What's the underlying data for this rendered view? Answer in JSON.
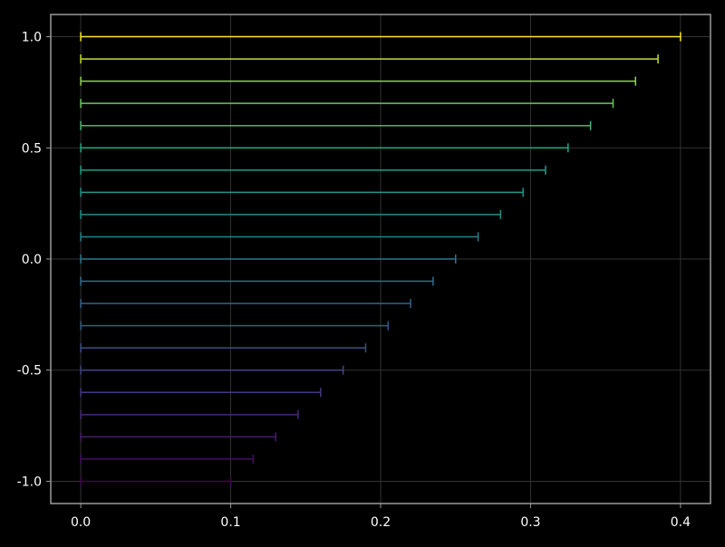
{
  "chart_data": {
    "type": "errorbar",
    "orientation": "horizontal",
    "title": "",
    "xlabel": "",
    "ylabel": "",
    "xlim": [
      -0.02,
      0.42
    ],
    "ylim": [
      -1.1,
      1.1
    ],
    "xticks": [
      0.0,
      0.1,
      0.2,
      0.3,
      0.4
    ],
    "xtick_labels": [
      "0.0",
      "0.1",
      "0.2",
      "0.3",
      "0.4"
    ],
    "yticks": [
      -1.0,
      -0.5,
      0.0,
      0.5,
      1.0
    ],
    "ytick_labels": [
      "-1.0",
      "-0.5",
      "0.0",
      "0.5",
      "1.0"
    ],
    "grid": true,
    "colormap": "viridis",
    "colors": {
      "background": "#000000",
      "frame": "#9a9a9a",
      "grid": "#333333",
      "text": "#ffffff"
    },
    "bars": [
      {
        "y": -1.0,
        "x_low": 0.0,
        "x_high": 0.1
      },
      {
        "y": -0.9,
        "x_low": 0.0,
        "x_high": 0.115
      },
      {
        "y": -0.8,
        "x_low": 0.0,
        "x_high": 0.13
      },
      {
        "y": -0.7,
        "x_low": 0.0,
        "x_high": 0.145
      },
      {
        "y": -0.6,
        "x_low": 0.0,
        "x_high": 0.16
      },
      {
        "y": -0.5,
        "x_low": 0.0,
        "x_high": 0.175
      },
      {
        "y": -0.4,
        "x_low": 0.0,
        "x_high": 0.19
      },
      {
        "y": -0.3,
        "x_low": 0.0,
        "x_high": 0.205
      },
      {
        "y": -0.2,
        "x_low": 0.0,
        "x_high": 0.22
      },
      {
        "y": -0.1,
        "x_low": 0.0,
        "x_high": 0.235
      },
      {
        "y": 0.0,
        "x_low": 0.0,
        "x_high": 0.25
      },
      {
        "y": 0.1,
        "x_low": 0.0,
        "x_high": 0.265
      },
      {
        "y": 0.2,
        "x_low": 0.0,
        "x_high": 0.28
      },
      {
        "y": 0.3,
        "x_low": 0.0,
        "x_high": 0.295
      },
      {
        "y": 0.4,
        "x_low": 0.0,
        "x_high": 0.31
      },
      {
        "y": 0.5,
        "x_low": 0.0,
        "x_high": 0.325
      },
      {
        "y": 0.6,
        "x_low": 0.0,
        "x_high": 0.34
      },
      {
        "y": 0.7,
        "x_low": 0.0,
        "x_high": 0.355
      },
      {
        "y": 0.8,
        "x_low": 0.0,
        "x_high": 0.37
      },
      {
        "y": 0.9,
        "x_low": 0.0,
        "x_high": 0.385
      },
      {
        "y": 1.0,
        "x_low": 0.0,
        "x_high": 0.4
      }
    ]
  }
}
